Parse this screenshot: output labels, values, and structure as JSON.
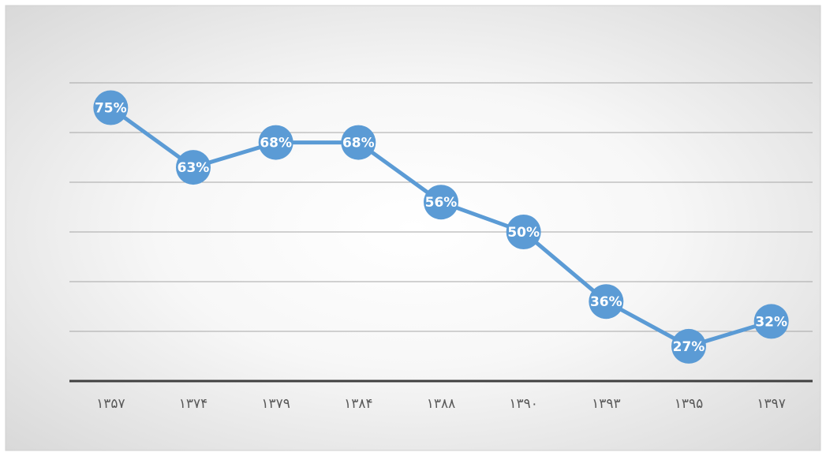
{
  "chart_data": {
    "type": "line",
    "categories": [
      "۱۳۵۷",
      "۱۳۷۴",
      "۱۳۷۹",
      "۱۳۸۴",
      "۱۳۸۸",
      "۱۳۹۰",
      "۱۳۹۳",
      "۱۳۹۵",
      "۱۳۹۷"
    ],
    "values": [
      75,
      63,
      68,
      68,
      56,
      50,
      36,
      27,
      32
    ],
    "value_labels": [
      "75%",
      "63%",
      "68%",
      "68%",
      "56%",
      "50%",
      "36%",
      "27%",
      "32%"
    ],
    "color": "#5b9bd5",
    "ylim": [
      20,
      80
    ],
    "yticks": [
      20,
      30,
      40,
      50,
      60,
      70,
      80
    ],
    "grid": true
  }
}
